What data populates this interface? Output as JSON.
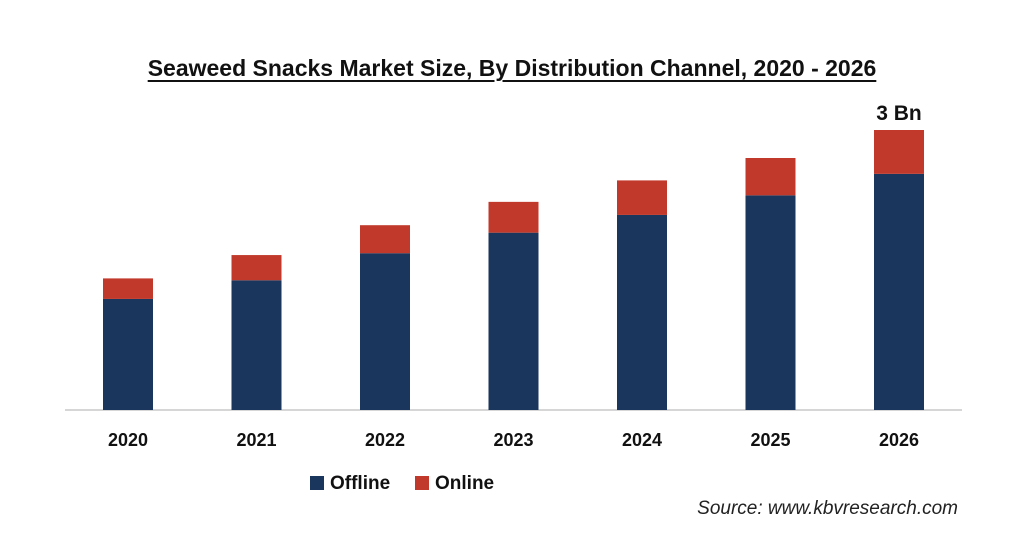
{
  "chart_data": {
    "type": "bar",
    "stacked": true,
    "title": "Seaweed Snacks Market Size, By Distribution  Channel, 2020 - 2026",
    "categories": [
      "2020",
      "2021",
      "2022",
      "2023",
      "2024",
      "2025",
      "2026"
    ],
    "series": [
      {
        "name": "Offline",
        "values": [
          1.19,
          1.39,
          1.68,
          1.9,
          2.09,
          2.3,
          2.53
        ],
        "color": "#1b365d"
      },
      {
        "name": "Online",
        "values": [
          0.22,
          0.27,
          0.3,
          0.33,
          0.37,
          0.4,
          0.47
        ],
        "color": "#c0392b"
      }
    ],
    "annotations": [
      {
        "category": "2026",
        "text": "3 Bn"
      }
    ],
    "ylim": [
      0,
      3
    ],
    "grid": false,
    "legend_position": "bottom"
  },
  "source": "Source: www.kbvresearch.com"
}
